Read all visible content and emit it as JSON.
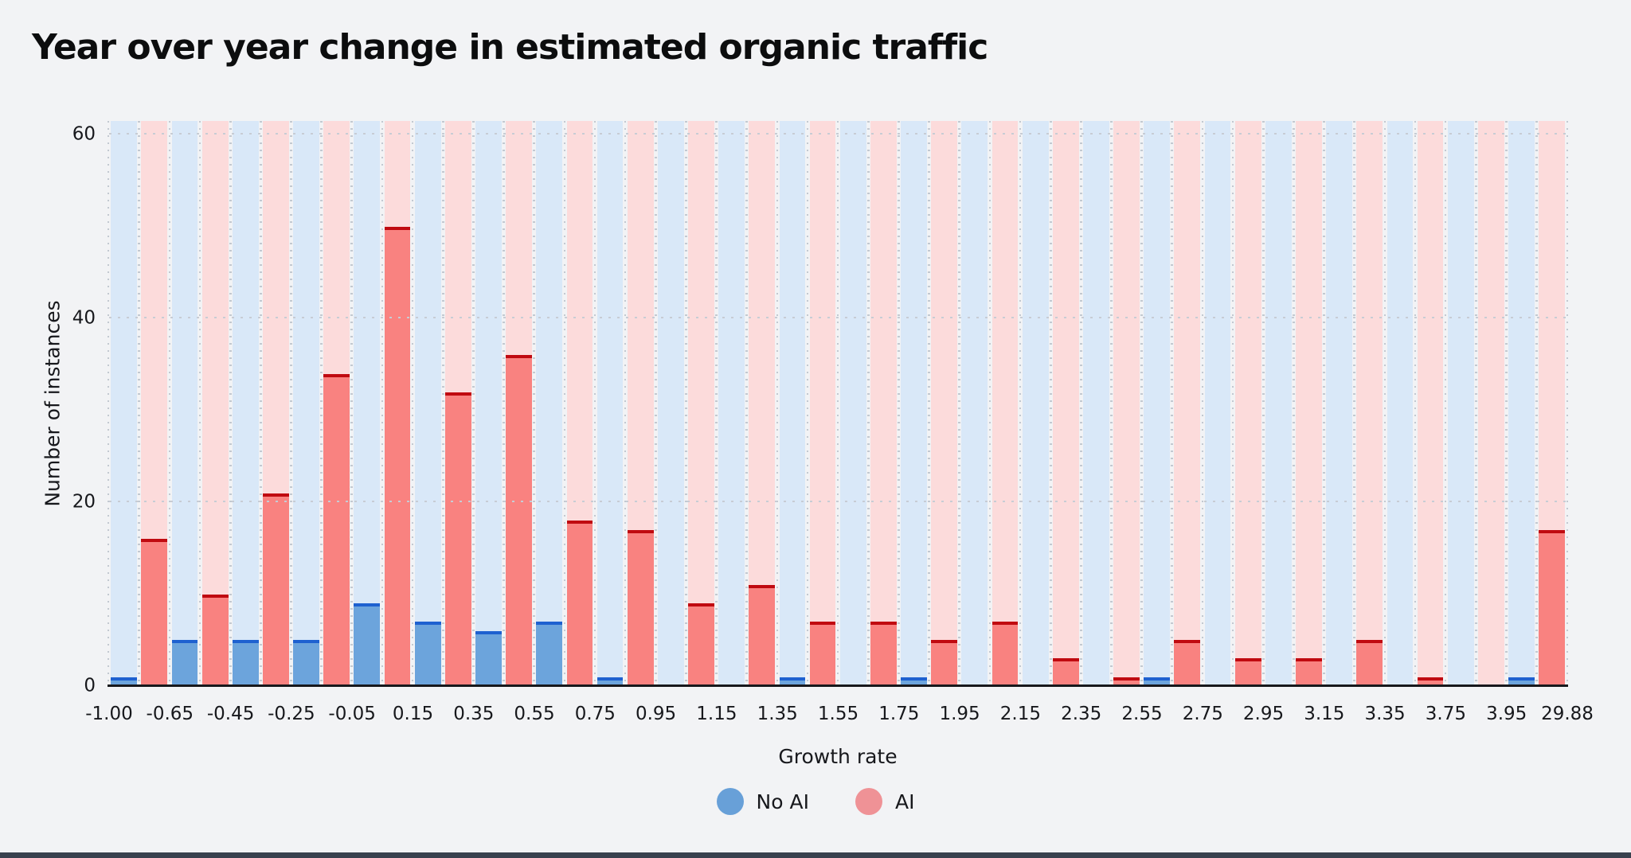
{
  "page": {
    "background": "#f2f3f5",
    "bottom_strip_color": "#39414e"
  },
  "chart_data": {
    "type": "bar",
    "title": "Year over year change in estimated organic traffic",
    "xlabel": "Growth rate",
    "ylabel": "Number of instances",
    "bin_edges": [
      "-1.00",
      "-0.65",
      "-0.45",
      "-0.25",
      "-0.05",
      "0.15",
      "0.35",
      "0.55",
      "0.75",
      "0.95",
      "1.15",
      "1.35",
      "1.55",
      "1.75",
      "1.95",
      "2.15",
      "2.35",
      "2.55",
      "2.75",
      "2.95",
      "3.15",
      "3.35",
      "3.75",
      "3.95",
      "29.88"
    ],
    "series": [
      {
        "name": "No AI",
        "fill": "#6ca4dc",
        "stroke": "#1e61d0",
        "band": "#d9e8f8",
        "legend_color": "#68a0d8",
        "values": [
          1,
          5,
          5,
          5,
          9,
          7,
          6,
          7,
          1,
          0,
          0,
          1,
          0,
          1,
          0,
          0,
          0,
          1,
          0,
          0,
          0,
          0,
          0,
          1
        ]
      },
      {
        "name": "AI",
        "fill": "#f98280",
        "stroke": "#c00a10",
        "band": "#fcdbdb",
        "legend_color": "#ef9296",
        "values": [
          16,
          10,
          21,
          34,
          50,
          32,
          36,
          18,
          17,
          9,
          11,
          7,
          7,
          5,
          7,
          3,
          1,
          5,
          3,
          3,
          5,
          1,
          0,
          17
        ]
      }
    ],
    "ylim": [
      0,
      61.5
    ],
    "yticks": [
      0,
      20,
      40,
      60
    ],
    "grid": "horizontal dotted at 20/40/60",
    "legend_position": "bottom-center"
  }
}
